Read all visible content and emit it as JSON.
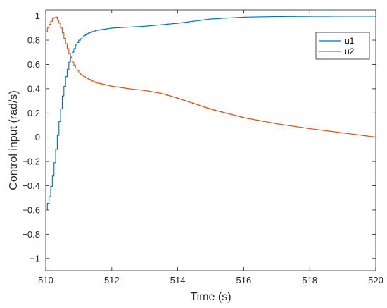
{
  "chart_data": {
    "type": "line",
    "step": true,
    "title": "",
    "xlabel": "Time (s)",
    "ylabel": "Control input (rad/s)",
    "xlim": [
      510,
      520
    ],
    "ylim": [
      -1.1,
      1.05
    ],
    "xticks": [
      510,
      512,
      514,
      516,
      518,
      520
    ],
    "yticks": [
      -1,
      -0.8,
      -0.6,
      -0.4,
      -0.2,
      0,
      0.2,
      0.4,
      0.6,
      0.8,
      1
    ],
    "grid": false,
    "box": true,
    "legend_position": "top-right",
    "series": [
      {
        "name": "u1",
        "color": "#0072BD",
        "x": [
          510,
          510.1,
          510.2,
          510.3,
          510.4,
          510.5,
          510.6,
          510.7,
          510.8,
          510.9,
          511.0,
          511.2,
          511.5,
          512,
          513,
          514,
          515,
          516,
          517,
          518,
          519,
          520
        ],
        "y": [
          -0.6,
          -0.49,
          -0.32,
          -0.1,
          0.13,
          0.34,
          0.5,
          0.62,
          0.7,
          0.76,
          0.8,
          0.85,
          0.88,
          0.9,
          0.915,
          0.94,
          0.975,
          0.99,
          0.995,
          0.997,
          0.998,
          0.998
        ]
      },
      {
        "name": "u2",
        "color": "#D95319",
        "x": [
          510,
          510.1,
          510.2,
          510.3,
          510.4,
          510.5,
          510.6,
          510.7,
          510.8,
          510.9,
          511.0,
          511.2,
          511.5,
          512,
          512.5,
          513,
          513.5,
          514,
          515,
          516,
          517,
          518,
          519,
          520
        ],
        "y": [
          0.87,
          0.93,
          0.98,
          0.99,
          0.94,
          0.86,
          0.77,
          0.69,
          0.62,
          0.57,
          0.53,
          0.49,
          0.45,
          0.42,
          0.4,
          0.385,
          0.36,
          0.32,
          0.23,
          0.16,
          0.11,
          0.07,
          0.035,
          0.0
        ]
      }
    ]
  }
}
